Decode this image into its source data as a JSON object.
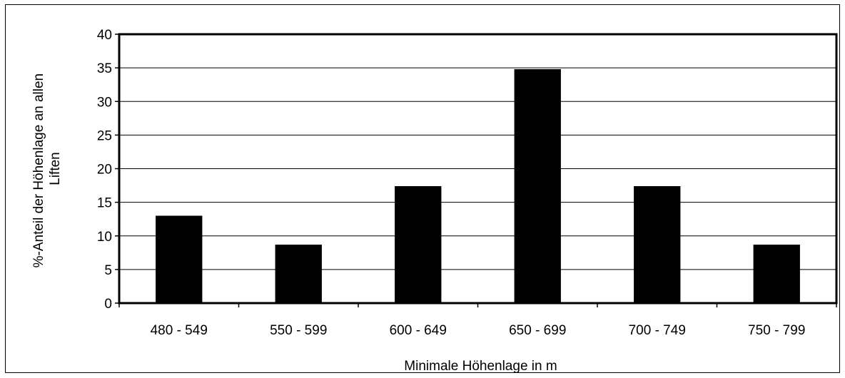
{
  "chart_data": {
    "type": "bar",
    "categories": [
      "480 - 549",
      "550 - 599",
      "600 - 649",
      "650 - 699",
      "700 - 749",
      "750 - 799"
    ],
    "values": [
      13.0,
      8.7,
      17.4,
      34.8,
      17.4,
      8.7
    ],
    "xlabel": "Minimale Höhenlage in m",
    "ylabel_lines": [
      "%-Anteil der Höhenlage an allen",
      "Liften"
    ],
    "ylim": [
      0,
      40
    ],
    "yticks": [
      0,
      5,
      10,
      15,
      20,
      25,
      30,
      35,
      40
    ],
    "grid": true,
    "legend": "none",
    "bar_color": "#000000"
  }
}
